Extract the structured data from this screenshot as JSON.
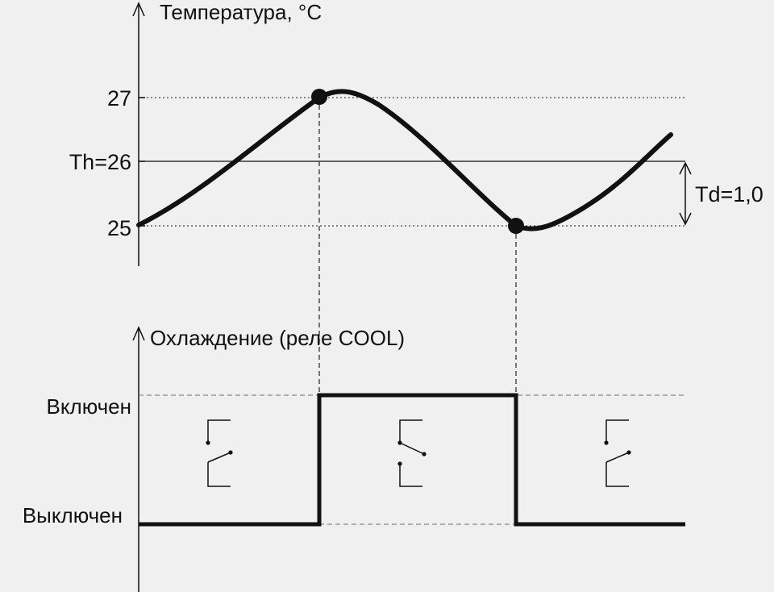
{
  "temperature_chart": {
    "axis_title": "Температура, °C",
    "ticks": {
      "t27": "27",
      "th": "Th=26",
      "t25": "25"
    },
    "td_label": "Td=1,0"
  },
  "relay_chart": {
    "axis_title": "Охлаждение (реле COOL)",
    "on_label": "Включен",
    "off_label": "Выключен"
  },
  "relay_states": [
    "off",
    "on",
    "off"
  ],
  "colors": {
    "background": "#f0f0f0",
    "ink": "#111111"
  }
}
